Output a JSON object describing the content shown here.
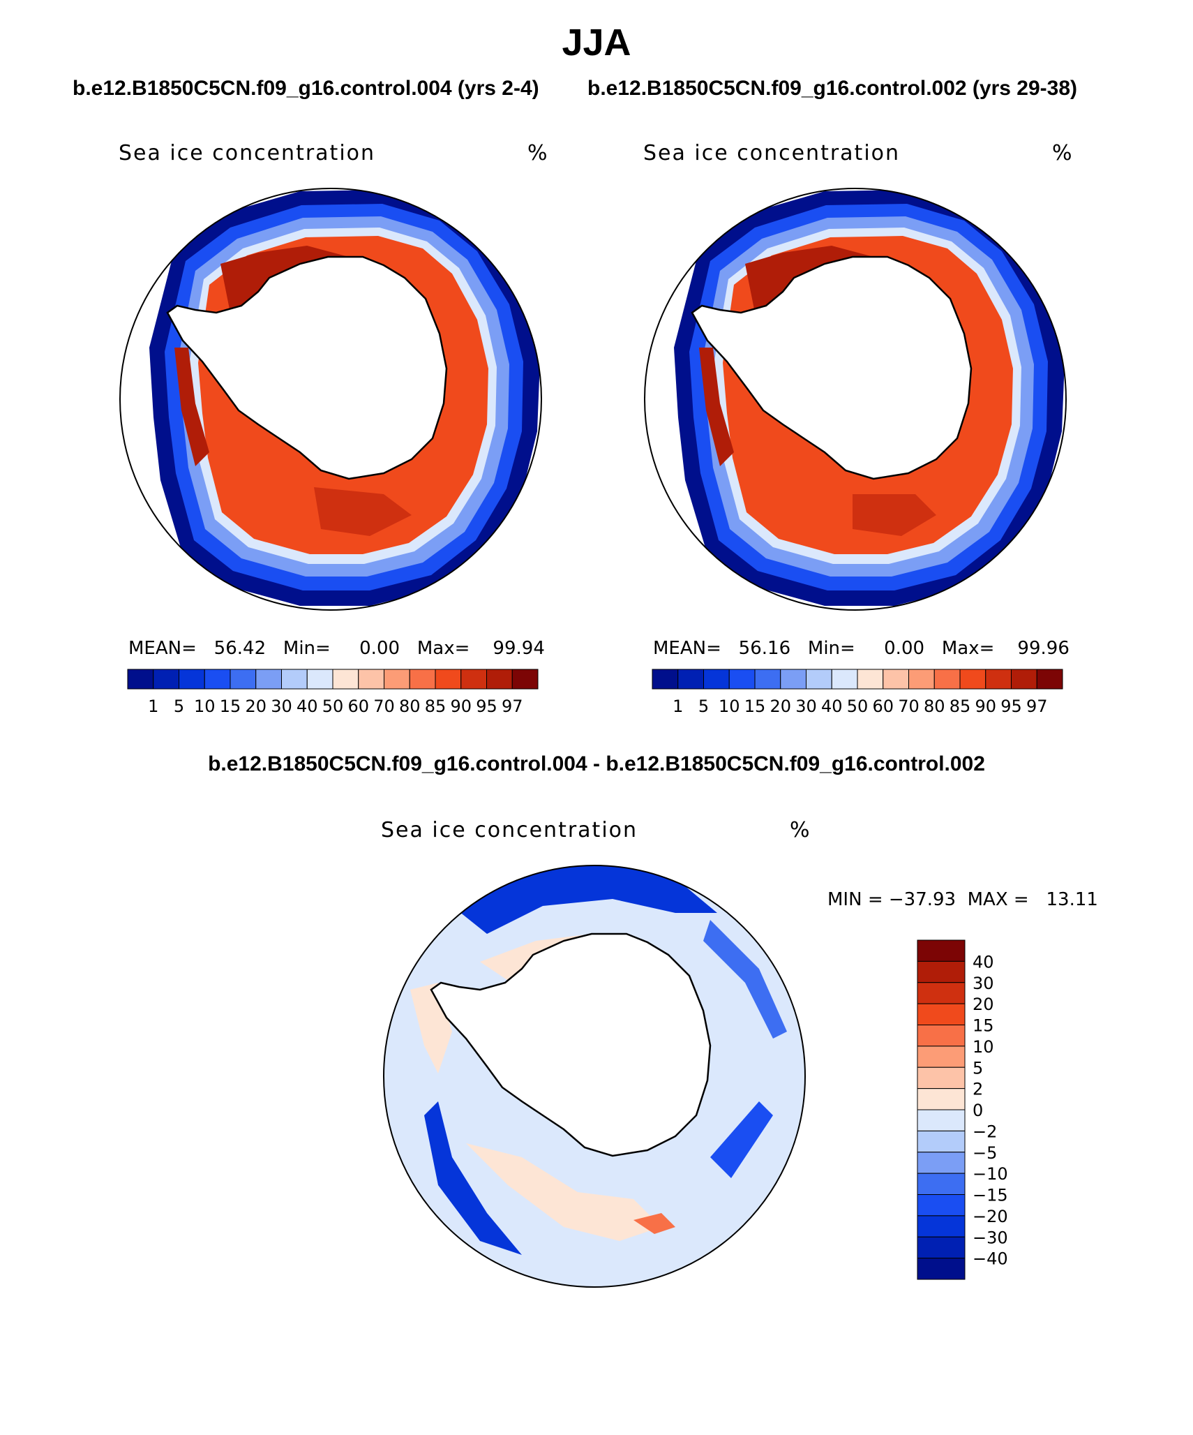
{
  "title": "JJA",
  "panels": [
    {
      "case_title": "b.e12.B1850C5CN.f09_g16.control.004 (yrs 2-4)",
      "variable": "Sea ice concentration",
      "units": "%",
      "stats_text": "MEAN=   56.42   Min=     0.00   Max=    99.94",
      "mean": 56.42,
      "min": 0.0,
      "max": 99.94
    },
    {
      "case_title": "b.e12.B1850C5CN.f09_g16.control.002 (yrs 29-38)",
      "variable": "Sea ice concentration",
      "units": "%",
      "stats_text": "MEAN=   56.16   Min=     0.00   Max=    99.96",
      "mean": 56.16,
      "min": 0.0,
      "max": 99.96
    }
  ],
  "colorbar": {
    "levels": [
      "1",
      "5",
      "10",
      "15",
      "20",
      "30",
      "40",
      "50",
      "60",
      "70",
      "80",
      "85",
      "90",
      "95",
      "97"
    ],
    "colors": [
      "#000f8c",
      "#0020b3",
      "#0535d9",
      "#1a4ef2",
      "#3d6ef2",
      "#7b9ef5",
      "#b3ccfa",
      "#dbe8fc",
      "#fde5d5",
      "#fdc3a8",
      "#fc9c76",
      "#f87047",
      "#f04a1c",
      "#cf3010",
      "#b01d08",
      "#7c0505"
    ]
  },
  "difference": {
    "title": "b.e12.B1850C5CN.f09_g16.control.004 - b.e12.B1850C5CN.f09_g16.control.002",
    "variable": "Sea ice concentration",
    "units": "%",
    "stats_text": "MIN = −37.93  MAX =   13.11",
    "min": -37.93,
    "max": 13.11,
    "levels": [
      "40",
      "30",
      "20",
      "15",
      "10",
      "5",
      "2",
      "0",
      "−2",
      "−5",
      "−10",
      "−15",
      "−20",
      "−30",
      "−40"
    ],
    "colors": [
      "#7c0505",
      "#b01d08",
      "#cf3010",
      "#f04a1c",
      "#f87047",
      "#fc9c76",
      "#fdc3a8",
      "#fde5d5",
      "#dbe8fc",
      "#b3ccfa",
      "#7b9ef5",
      "#3d6ef2",
      "#1a4ef2",
      "#0535d9",
      "#0020b3",
      "#000f8c"
    ]
  }
}
